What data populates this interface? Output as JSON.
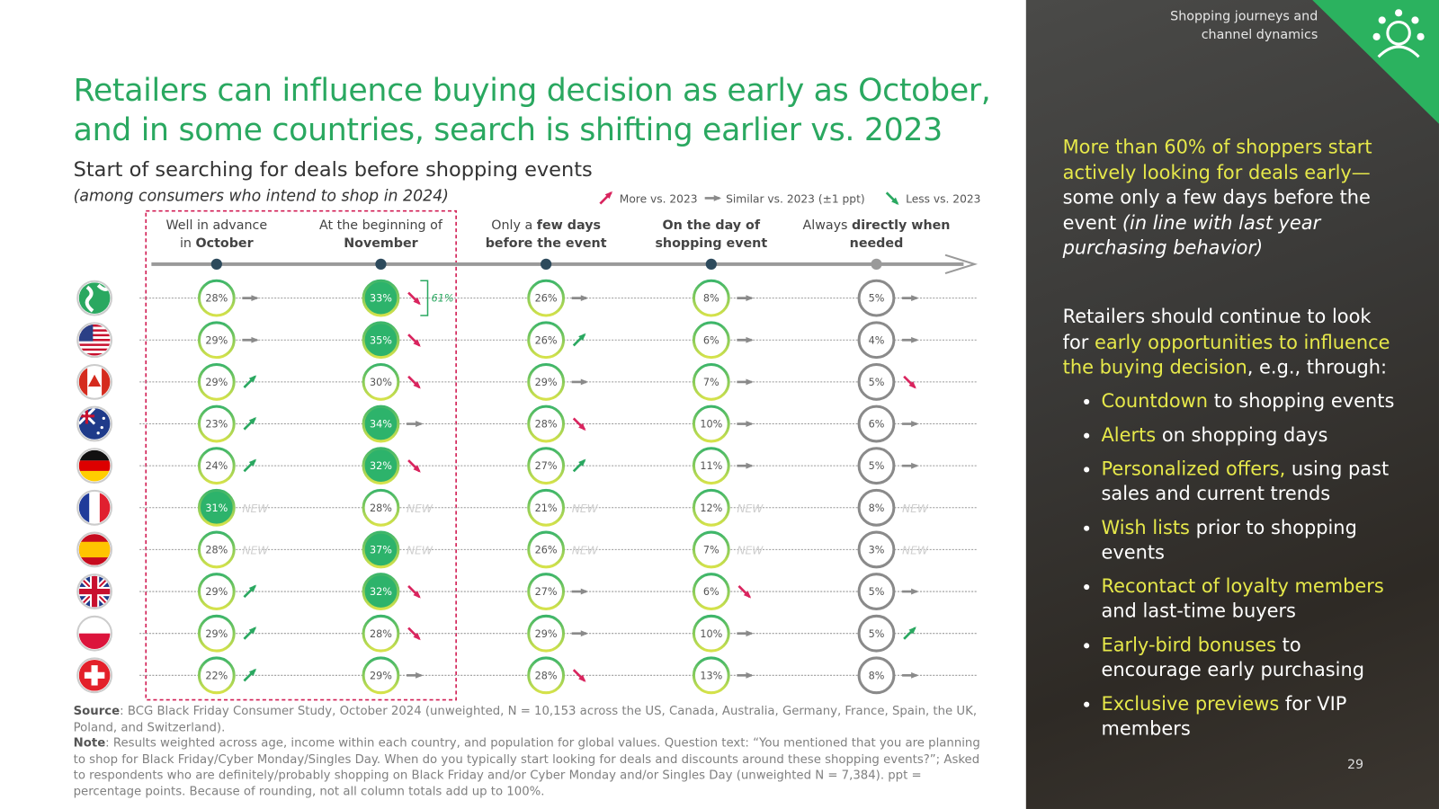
{
  "header": {
    "section": "Shopping journeys and channel dynamics",
    "page": "29"
  },
  "title": [
    "Retailers can influence buying decision as early as October,",
    "and in some countries, search is shifting earlier vs. 2023"
  ],
  "subtitle": "Start of searching for deals before shopping events",
  "subnote": "(among consumers who intend to shop in 2024)",
  "legend": [
    {
      "kind": "up",
      "label": "More vs. 2023"
    },
    {
      "kind": "flat",
      "label": "Similar vs. 2023 (±1 ppt)"
    },
    {
      "kind": "down",
      "label": "Less vs. 2023"
    }
  ],
  "grid": {
    "columns": [
      {
        "lines": [
          [
            {
              "t": "Well in advance"
            }
          ],
          [
            {
              "t": "in "
            },
            {
              "t": "October",
              "b": true
            }
          ]
        ]
      },
      {
        "lines": [
          [
            {
              "t": "At the beginning of"
            }
          ],
          [
            {
              "t": "November",
              "b": true
            }
          ]
        ]
      },
      {
        "lines": [
          [
            {
              "t": "Only a "
            },
            {
              "t": "few days",
              "b": true
            }
          ],
          [
            {
              "t": "before the event",
              "b": true
            }
          ]
        ]
      },
      {
        "lines": [
          [
            {
              "t": "On the day of",
              "b": true
            }
          ],
          [
            {
              "t": "shopping event",
              "b": true
            }
          ]
        ]
      },
      {
        "lines": [
          [
            {
              "t": "Always "
            },
            {
              "t": "directly when",
              "b": true
            }
          ],
          [
            {
              "t": "needed",
              "b": true
            }
          ]
        ]
      }
    ],
    "bracket": "61%",
    "rows": [
      {
        "cells": [
          {
            "value": "28%",
            "trend": "flat"
          },
          {
            "value": "33%",
            "trend": "down",
            "highlight": true
          },
          {
            "value": "26%",
            "trend": "flat"
          },
          {
            "value": "8%",
            "trend": "flat"
          },
          {
            "value": "5%",
            "trend": "flat"
          }
        ]
      },
      {
        "cells": [
          {
            "value": "29%",
            "trend": "flat"
          },
          {
            "value": "35%",
            "trend": "down",
            "highlight": true
          },
          {
            "value": "26%",
            "trend": "up"
          },
          {
            "value": "6%",
            "trend": "flat"
          },
          {
            "value": "4%",
            "trend": "flat"
          }
        ]
      },
      {
        "cells": [
          {
            "value": "29%",
            "trend": "up"
          },
          {
            "value": "30%",
            "trend": "down"
          },
          {
            "value": "29%",
            "trend": "flat"
          },
          {
            "value": "7%",
            "trend": "flat"
          },
          {
            "value": "5%",
            "trend": "down"
          }
        ]
      },
      {
        "cells": [
          {
            "value": "23%",
            "trend": "up"
          },
          {
            "value": "34%",
            "trend": "flat",
            "highlight": true
          },
          {
            "value": "28%",
            "trend": "down"
          },
          {
            "value": "10%",
            "trend": "flat"
          },
          {
            "value": "6%",
            "trend": "flat"
          }
        ]
      },
      {
        "cells": [
          {
            "value": "24%",
            "trend": "up"
          },
          {
            "value": "32%",
            "trend": "down",
            "highlight": true
          },
          {
            "value": "27%",
            "trend": "up"
          },
          {
            "value": "11%",
            "trend": "flat"
          },
          {
            "value": "5%",
            "trend": "flat"
          }
        ]
      },
      {
        "cells": [
          {
            "value": "31%",
            "trend": "NEW",
            "highlight": true
          },
          {
            "value": "28%",
            "trend": "NEW"
          },
          {
            "value": "21%",
            "trend": "NEW"
          },
          {
            "value": "12%",
            "trend": "NEW"
          },
          {
            "value": "8%",
            "trend": "NEW"
          }
        ]
      },
      {
        "cells": [
          {
            "value": "28%",
            "trend": "NEW"
          },
          {
            "value": "37%",
            "trend": "NEW",
            "highlight": true
          },
          {
            "value": "26%",
            "trend": "NEW"
          },
          {
            "value": "7%",
            "trend": "NEW"
          },
          {
            "value": "3%",
            "trend": "NEW"
          }
        ]
      },
      {
        "cells": [
          {
            "value": "29%",
            "trend": "up"
          },
          {
            "value": "32%",
            "trend": "down",
            "highlight": true
          },
          {
            "value": "27%",
            "trend": "flat"
          },
          {
            "value": "6%",
            "trend": "down"
          },
          {
            "value": "5%",
            "trend": "flat"
          }
        ]
      },
      {
        "cells": [
          {
            "value": "29%",
            "trend": "up"
          },
          {
            "value": "28%",
            "trend": "down"
          },
          {
            "value": "29%",
            "trend": "flat"
          },
          {
            "value": "10%",
            "trend": "flat"
          },
          {
            "value": "5%",
            "trend": "up"
          }
        ]
      },
      {
        "cells": [
          {
            "value": "22%",
            "trend": "up"
          },
          {
            "value": "29%",
            "trend": "flat"
          },
          {
            "value": "28%",
            "trend": "down"
          },
          {
            "value": "13%",
            "trend": "flat"
          },
          {
            "value": "8%",
            "trend": "flat"
          }
        ]
      }
    ]
  },
  "footnotes": [
    {
      "label": "Source",
      "text": ": BCG Black Friday Consumer Study, October 2024 (unweighted, N = 10,153 across the US, Canada, Australia, Germany, France, Spain, the UK, Poland, and Switzerland)."
    },
    {
      "label": "Note",
      "text": ": Results weighted across age, income within each country, and population for global values. Question text: “You mentioned that you are planning to shop for Black Friday/Cyber Monday/Singles Day. When do you typically start looking for deals and discounts around these shopping events?”; Asked to respondents who are definitely/probably shopping on Black Friday and/or Cyber Monday and/or Singles Day (unweighted N = 7,384). ppt = percentage points. Because of rounding, not all column totals add up to 100%."
    }
  ],
  "panel": {
    "intro": [
      {
        "t": "More than 60% of shoppers start actively looking for deals early—",
        "s": "hl"
      },
      {
        "t": " some only a few days before the event ",
        "s": "plain"
      },
      {
        "t": "(in line with last year purchasing behavior)",
        "s": "italic"
      }
    ],
    "lead": [
      {
        "t": "Retailers should continue to look for ",
        "s": "plain"
      },
      {
        "t": "early opportunities to influence the buying decision",
        "s": "hl"
      },
      {
        "t": ", e.g., through:",
        "s": "plain"
      }
    ],
    "bullets": [
      {
        "hl": "Countdown",
        "rest": " to shopping events"
      },
      {
        "hl": "Alerts",
        "rest": " on shopping days"
      },
      {
        "hl": "Personalized offers,",
        "rest": " using past sales and current trends"
      },
      {
        "hl": "Wish lists",
        "rest": " prior to shopping events"
      },
      {
        "hl": "Recontact of loyalty members",
        "rest": " and last-time buyers"
      },
      {
        "hl": "Early-bird bonuses",
        "rest": " to encourage early purchasing"
      },
      {
        "hl": "Exclusive previews",
        "rest": " for VIP members"
      }
    ]
  }
}
